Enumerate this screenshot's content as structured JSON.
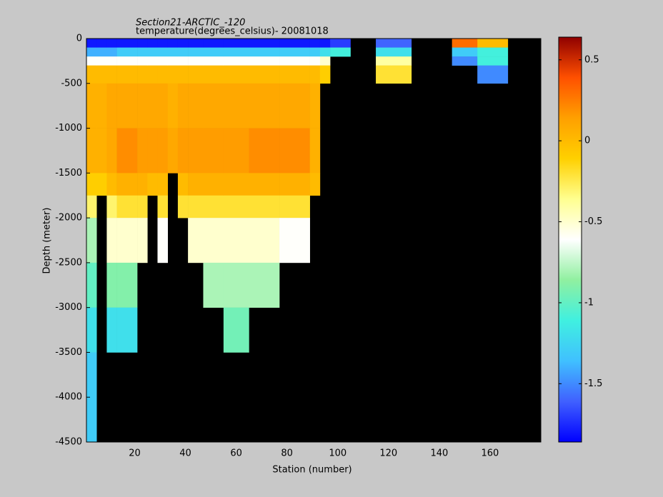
{
  "chart_data": {
    "type": "heatmap",
    "title": "Section21-ARCTIC_-120",
    "subtitle": "temperature(degrees_celsius)- 20081018",
    "xlabel": "Station (number)",
    "ylabel": "Depth (meter)",
    "xlim": [
      1,
      180
    ],
    "ylim": [
      -4500,
      0
    ],
    "xticks": [
      20,
      40,
      60,
      80,
      100,
      120,
      140,
      160
    ],
    "yticks": [
      0,
      -500,
      -1000,
      -1500,
      -2000,
      -2500,
      -3000,
      -3500,
      -4000,
      -4500
    ],
    "clim": [
      -1.86,
      0.64
    ],
    "cticks": [
      0.5,
      0,
      -0.5,
      -1,
      -1.5
    ],
    "colormap": [
      "#0000ff",
      "#4060ff",
      "#40c0ff",
      "#40f0e0",
      "#90f0a0",
      "#ffffff",
      "#ffff90",
      "#ffd000",
      "#ffa000",
      "#ff5000",
      "#900000"
    ],
    "missing_color": "#000000",
    "x_edges": [
      1,
      5,
      9,
      13,
      21,
      25,
      29,
      33,
      37,
      41,
      47,
      55,
      65,
      77,
      89,
      93,
      97,
      105,
      115,
      121,
      129,
      145,
      155,
      167,
      180
    ],
    "y_edges": [
      0,
      -100,
      -200,
      -300,
      -500,
      -1000,
      -1500,
      -1750,
      -2000,
      -2500,
      -3000,
      -3500,
      -4000,
      -4500
    ],
    "z": [
      [
        -1.8,
        -1.4,
        -0.6,
        0,
        0.05,
        0.05,
        -0.1,
        -0.3,
        -0.8,
        -1.0,
        -1.2,
        -1.3,
        -1.3
      ],
      [
        -1.8,
        -1.4,
        -0.6,
        0,
        0.05,
        0.05,
        -0.1,
        null,
        null,
        null,
        null,
        null,
        null
      ],
      [
        -1.8,
        -1.4,
        -0.6,
        0,
        0.1,
        0.1,
        0,
        -0.3,
        -0.5,
        -0.9,
        -1.2,
        null,
        null
      ],
      [
        -1.8,
        -1.3,
        -0.6,
        0,
        0.1,
        0.2,
        0.05,
        -0.2,
        -0.5,
        -0.9,
        -1.2,
        null,
        null
      ],
      [
        -1.8,
        -1.3,
        -0.6,
        0,
        0.1,
        0.15,
        0.05,
        -0.2,
        -0.5,
        null,
        null,
        null,
        null
      ],
      [
        -1.8,
        -1.3,
        -0.6,
        0,
        0.1,
        0.15,
        0,
        null,
        null,
        null,
        null,
        null,
        null
      ],
      [
        -1.8,
        -1.3,
        -0.6,
        0,
        0.1,
        0.15,
        0,
        -0.2,
        -0.6,
        null,
        null,
        null,
        null
      ],
      [
        -1.8,
        -1.3,
        -0.6,
        0,
        0.05,
        0.1,
        null,
        null,
        null,
        null,
        null,
        null,
        null
      ],
      [
        -1.8,
        -1.3,
        -0.6,
        0,
        0.1,
        0.15,
        0,
        -0.2,
        null,
        null,
        null,
        null,
        null
      ],
      [
        -1.8,
        -1.3,
        -0.6,
        0,
        0.1,
        0.15,
        0.05,
        -0.2,
        -0.5,
        null,
        null,
        null,
        null
      ],
      [
        -1.8,
        -1.3,
        -0.6,
        0,
        0.1,
        0.15,
        0.05,
        -0.2,
        -0.5,
        -0.8,
        null,
        null,
        null
      ],
      [
        -1.8,
        -1.3,
        -0.6,
        0,
        0.1,
        0.15,
        0.05,
        -0.2,
        -0.5,
        -0.8,
        -0.95,
        null,
        null
      ],
      [
        -1.8,
        -1.3,
        -0.6,
        0,
        0.1,
        0.2,
        0.05,
        -0.2,
        -0.5,
        -0.8,
        null,
        null,
        null
      ],
      [
        -1.8,
        -1.3,
        -0.6,
        0,
        0.1,
        0.2,
        0.05,
        -0.2,
        -0.6,
        null,
        null,
        null,
        null
      ],
      [
        -1.8,
        -1.3,
        -0.6,
        0,
        0.05,
        0.05,
        0,
        null,
        null,
        null,
        null,
        null,
        null
      ],
      [
        -1.8,
        -1.2,
        -0.5,
        -0.1,
        null,
        null,
        null,
        null,
        null,
        null,
        null,
        null,
        null
      ],
      [
        -1.7,
        -1.1,
        null,
        null,
        null,
        null,
        null,
        null,
        null,
        null,
        null,
        null,
        null
      ],
      [
        null,
        null,
        null,
        null,
        null,
        null,
        null,
        null,
        null,
        null,
        null,
        null,
        null
      ],
      [
        -1.6,
        -1.2,
        -0.4,
        -0.2,
        null,
        null,
        null,
        null,
        null,
        null,
        null,
        null,
        null
      ],
      [
        -1.6,
        -1.2,
        -0.4,
        -0.2,
        null,
        null,
        null,
        null,
        null,
        null,
        null,
        null,
        null
      ],
      [
        null,
        null,
        null,
        null,
        null,
        null,
        null,
        null,
        null,
        null,
        null,
        null,
        null
      ],
      [
        0.3,
        -1.3,
        -1.5,
        null,
        null,
        null,
        null,
        null,
        null,
        null,
        null,
        null,
        null
      ],
      [
        0.0,
        -1.1,
        -1.1,
        -1.5,
        null,
        null,
        null,
        null,
        null,
        null,
        null,
        null,
        null
      ],
      [
        null,
        null,
        null,
        null,
        null,
        null,
        null,
        null,
        null,
        null,
        null,
        null,
        null
      ]
    ]
  }
}
